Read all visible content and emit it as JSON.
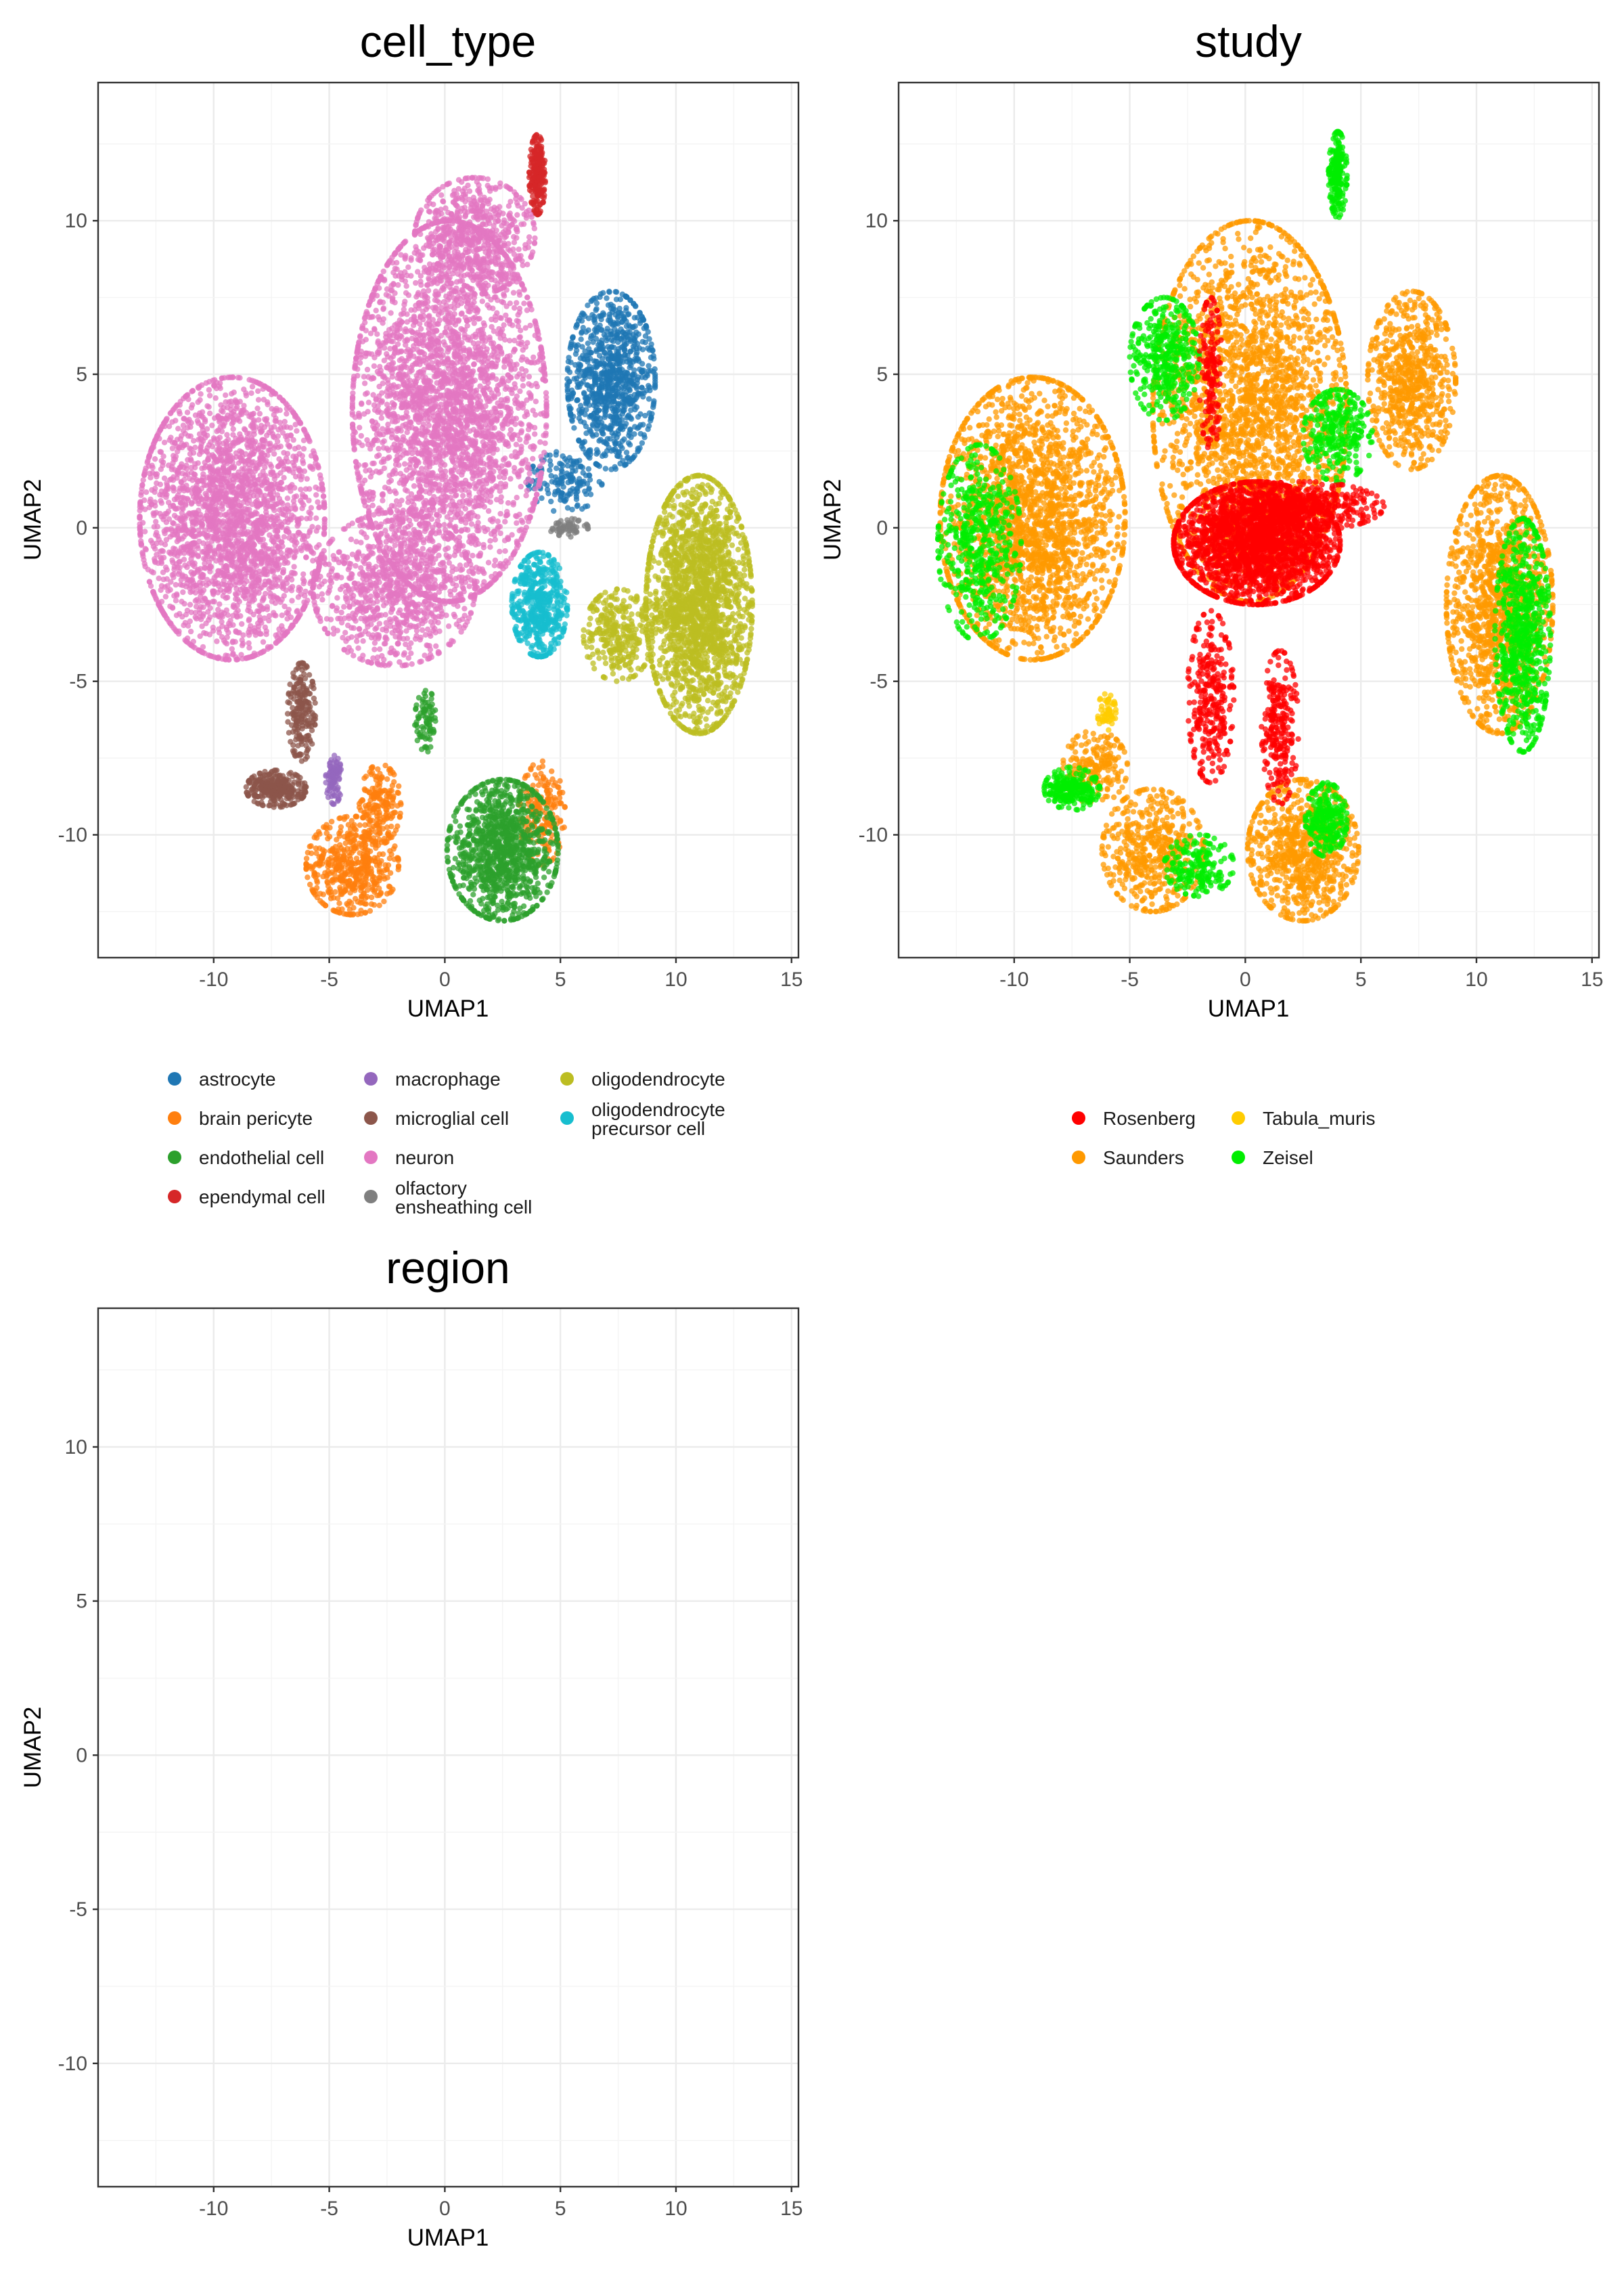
{
  "chart_data": [
    {
      "type": "scatter",
      "title": "cell_type",
      "xlabel": "UMAP1",
      "ylabel": "UMAP2",
      "xlim": [
        -15,
        15.3
      ],
      "ylim": [
        -14,
        14.5
      ],
      "x_ticks": [
        -10,
        -5,
        0,
        5,
        10,
        15
      ],
      "y_ticks": [
        -10,
        -5,
        0,
        5,
        10
      ],
      "x_tick_labels": [
        "-10",
        "-5",
        "0",
        "5",
        "10",
        "15"
      ],
      "y_tick_labels": [
        "-10",
        "-5",
        "0",
        "5",
        "10"
      ],
      "grid": true,
      "legend_position": "bottom",
      "legend_columns": 3,
      "series": [
        {
          "name": "astrocyte",
          "color": "#1f77b4",
          "clusters": [
            {
              "cx": 7.2,
              "cy": 4.8,
              "rx": 1.9,
              "ry": 2.9,
              "n": 900
            },
            {
              "cx": 5.2,
              "cy": 1.5,
              "rx": 1.6,
              "ry": 1.0,
              "n": 150
            }
          ]
        },
        {
          "name": "brain pericyte",
          "color": "#ff7f0e",
          "clusters": [
            {
              "cx": -4.0,
              "cy": -11.0,
              "rx": 2.0,
              "ry": 1.6,
              "n": 500
            },
            {
              "cx": -2.8,
              "cy": -9.0,
              "rx": 0.9,
              "ry": 1.3,
              "n": 180
            },
            {
              "cx": 4.2,
              "cy": -9.3,
              "rx": 1.0,
              "ry": 1.7,
              "n": 200
            }
          ]
        },
        {
          "name": "endothelial cell",
          "color": "#2ca02c",
          "clusters": [
            {
              "cx": 2.5,
              "cy": -10.5,
              "rx": 2.4,
              "ry": 2.3,
              "n": 1100
            },
            {
              "cx": -0.8,
              "cy": -6.3,
              "rx": 0.5,
              "ry": 1.0,
              "n": 80
            }
          ]
        },
        {
          "name": "ependymal cell",
          "color": "#d62728",
          "clusters": [
            {
              "cx": 4.0,
              "cy": 11.5,
              "rx": 0.35,
              "ry": 1.3,
              "n": 220
            }
          ]
        },
        {
          "name": "macrophage",
          "color": "#9467bd",
          "clusters": [
            {
              "cx": -4.8,
              "cy": -8.2,
              "rx": 0.35,
              "ry": 0.8,
              "n": 90
            }
          ]
        },
        {
          "name": "microglial cell",
          "color": "#8c564b",
          "clusters": [
            {
              "cx": -7.3,
              "cy": -8.5,
              "rx": 1.3,
              "ry": 0.6,
              "n": 300
            },
            {
              "cx": -6.2,
              "cy": -6.0,
              "rx": 0.6,
              "ry": 1.6,
              "n": 200
            }
          ]
        },
        {
          "name": "neuron",
          "color": "#e377c2",
          "clusters": [
            {
              "cx": -9.2,
              "cy": 0.3,
              "rx": 4.0,
              "ry": 4.6,
              "n": 2600
            },
            {
              "cx": 0.2,
              "cy": 3.8,
              "rx": 4.2,
              "ry": 6.2,
              "n": 3200
            },
            {
              "cx": -2.2,
              "cy": -2.0,
              "rx": 3.5,
              "ry": 2.5,
              "n": 900
            },
            {
              "cx": 1.3,
              "cy": 9.5,
              "rx": 2.6,
              "ry": 1.9,
              "n": 600
            }
          ]
        },
        {
          "name": "olfactory ensheathing cell",
          "color": "#7f7f7f",
          "clusters": [
            {
              "cx": 5.3,
              "cy": 0.0,
              "rx": 0.9,
              "ry": 0.3,
              "n": 60
            }
          ]
        },
        {
          "name": "oligodendrocyte",
          "color": "#bcbd22",
          "clusters": [
            {
              "cx": 11.0,
              "cy": -2.5,
              "rx": 2.3,
              "ry": 4.2,
              "n": 2000
            },
            {
              "cx": 7.5,
              "cy": -3.5,
              "rx": 1.5,
              "ry": 1.5,
              "n": 300
            }
          ]
        },
        {
          "name": "oligodendrocyte precursor cell",
          "color": "#17becf",
          "clusters": [
            {
              "cx": 4.1,
              "cy": -2.5,
              "rx": 1.2,
              "ry": 1.7,
              "n": 500
            }
          ]
        }
      ],
      "legend_labels": [
        [
          "astrocyte"
        ],
        [
          "brain pericyte"
        ],
        [
          "endothelial cell"
        ],
        [
          "ependymal cell"
        ],
        [
          "macrophage"
        ],
        [
          "microglial cell"
        ],
        [
          "neuron"
        ],
        [
          "olfactory",
          "ensheathing cell"
        ],
        [
          "oligodendrocyte"
        ],
        [
          "oligodendrocyte",
          "precursor cell"
        ]
      ]
    },
    {
      "type": "scatter",
      "title": "study",
      "xlabel": "UMAP1",
      "ylabel": "UMAP2",
      "xlim": [
        -15,
        15.3
      ],
      "ylim": [
        -14,
        14.5
      ],
      "x_ticks": [
        -10,
        -5,
        0,
        5,
        10,
        15
      ],
      "y_ticks": [
        -10,
        -5,
        0,
        5,
        10
      ],
      "x_tick_labels": [
        "-10",
        "-5",
        "0",
        "5",
        "10",
        "15"
      ],
      "y_tick_labels": [
        "-10",
        "-5",
        "0",
        "5",
        "10"
      ],
      "grid": true,
      "legend_position": "bottom",
      "legend_columns": 2,
      "series": [
        {
          "name": "Saunders",
          "color": "#ff9900",
          "clusters": [
            {
              "cx": -9.2,
              "cy": 0.3,
              "rx": 4.0,
              "ry": 4.6,
              "n": 2200
            },
            {
              "cx": 0.2,
              "cy": 3.8,
              "rx": 4.2,
              "ry": 6.2,
              "n": 2400
            },
            {
              "cx": 7.2,
              "cy": 4.8,
              "rx": 1.9,
              "ry": 2.9,
              "n": 700
            },
            {
              "cx": 11.0,
              "cy": -2.5,
              "rx": 2.3,
              "ry": 4.2,
              "n": 1300
            },
            {
              "cx": -4.0,
              "cy": -10.5,
              "rx": 2.2,
              "ry": 2.0,
              "n": 500
            },
            {
              "cx": 2.5,
              "cy": -10.5,
              "rx": 2.4,
              "ry": 2.3,
              "n": 800
            },
            {
              "cx": -6.5,
              "cy": -7.8,
              "rx": 1.4,
              "ry": 1.2,
              "n": 200
            }
          ]
        },
        {
          "name": "Zeisel",
          "color": "#00ee00",
          "clusters": [
            {
              "cx": 12.0,
              "cy": -3.5,
              "rx": 1.2,
              "ry": 3.8,
              "n": 700
            },
            {
              "cx": -11.5,
              "cy": -0.5,
              "rx": 1.8,
              "ry": 3.2,
              "n": 500
            },
            {
              "cx": -7.5,
              "cy": -8.5,
              "rx": 1.2,
              "ry": 0.7,
              "n": 250
            },
            {
              "cx": 3.5,
              "cy": -9.5,
              "rx": 0.9,
              "ry": 1.2,
              "n": 250
            },
            {
              "cx": 4.0,
              "cy": 11.5,
              "rx": 0.4,
              "ry": 1.4,
              "n": 200
            },
            {
              "cx": -3.5,
              "cy": 5.5,
              "rx": 1.5,
              "ry": 2.0,
              "n": 400
            },
            {
              "cx": 4.0,
              "cy": 3.0,
              "rx": 1.5,
              "ry": 1.5,
              "n": 300
            },
            {
              "cx": -2.0,
              "cy": -11.0,
              "rx": 1.5,
              "ry": 1.0,
              "n": 200
            }
          ]
        },
        {
          "name": "Rosenberg",
          "color": "#ff0000",
          "clusters": [
            {
              "cx": 0.5,
              "cy": -0.5,
              "rx": 3.6,
              "ry": 2.0,
              "n": 2200
            },
            {
              "cx": 2.5,
              "cy": 0.7,
              "rx": 3.5,
              "ry": 0.8,
              "n": 500
            },
            {
              "cx": -1.5,
              "cy": -5.5,
              "rx": 1.0,
              "ry": 2.8,
              "n": 300
            },
            {
              "cx": 1.5,
              "cy": -6.5,
              "rx": 0.8,
              "ry": 2.5,
              "n": 250
            },
            {
              "cx": -1.5,
              "cy": 5.0,
              "rx": 0.5,
              "ry": 2.5,
              "n": 150
            }
          ]
        },
        {
          "name": "Tabula_muris",
          "color": "#ffcc00",
          "clusters": [
            {
              "cx": -6.0,
              "cy": -6.0,
              "rx": 0.4,
              "ry": 0.6,
              "n": 60
            }
          ]
        }
      ],
      "legend_labels": [
        [
          "Rosenberg"
        ],
        [
          "Saunders"
        ],
        [
          "Tabula_muris"
        ],
        [
          "Zeisel"
        ]
      ]
    },
    {
      "type": "scatter",
      "title": "region",
      "xlabel": "UMAP1",
      "ylabel": "UMAP2",
      "xlim": [
        -15,
        15.3
      ],
      "ylim": [
        -14,
        14.5
      ],
      "x_ticks": [
        -10,
        -5,
        0,
        5,
        10,
        15
      ],
      "y_ticks": [
        -10,
        -5,
        0,
        5,
        10
      ],
      "x_tick_labels": [
        "-10",
        "-5",
        "0",
        "5",
        "10",
        "15"
      ],
      "y_tick_labels": [
        "-10",
        "-5",
        "0",
        "5",
        "10"
      ],
      "grid": true,
      "series": []
    }
  ]
}
